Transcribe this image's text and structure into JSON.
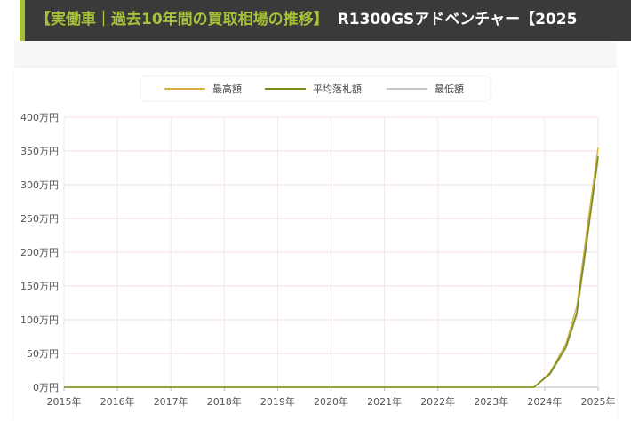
{
  "header": {
    "accent_text": "【実働車｜過去10年間の買取相場の推移】",
    "title_text": "R1300GSアドベンチャー【2025"
  },
  "chart_data": {
    "type": "line",
    "title": "",
    "xlabel": "",
    "ylabel": "",
    "categories": [
      "2015年",
      "2016年",
      "2017年",
      "2018年",
      "2019年",
      "2020年",
      "2021年",
      "2022年",
      "2023年",
      "2024年",
      "2025年"
    ],
    "y_ticks": [
      "0万円",
      "50万円",
      "100万円",
      "150万円",
      "200万円",
      "250万円",
      "300万円",
      "350万円",
      "400万円"
    ],
    "ylim": [
      0,
      400
    ],
    "y_unit": "万円",
    "grid": true,
    "legend_position": "top-center",
    "series": [
      {
        "name": "最高額",
        "color": "#d4b040",
        "points": [
          [
            2015,
            0
          ],
          [
            2023.8,
            0
          ],
          [
            2024.1,
            22
          ],
          [
            2024.4,
            65
          ],
          [
            2024.6,
            120
          ],
          [
            2024.8,
            240
          ],
          [
            2025,
            355
          ]
        ]
      },
      {
        "name": "平均落札額",
        "color": "#7a8c1a",
        "points": [
          [
            2015,
            0
          ],
          [
            2023.8,
            0
          ],
          [
            2024.1,
            20
          ],
          [
            2024.4,
            60
          ],
          [
            2024.6,
            110
          ],
          [
            2024.8,
            225
          ],
          [
            2025,
            342
          ]
        ]
      },
      {
        "name": "最低額",
        "color": "#c8c8c8",
        "points": [
          [
            2015,
            0
          ],
          [
            2023.8,
            0
          ],
          [
            2024.1,
            19
          ],
          [
            2024.4,
            57
          ],
          [
            2024.6,
            105
          ],
          [
            2024.8,
            218
          ],
          [
            2025,
            338
          ]
        ]
      }
    ]
  }
}
